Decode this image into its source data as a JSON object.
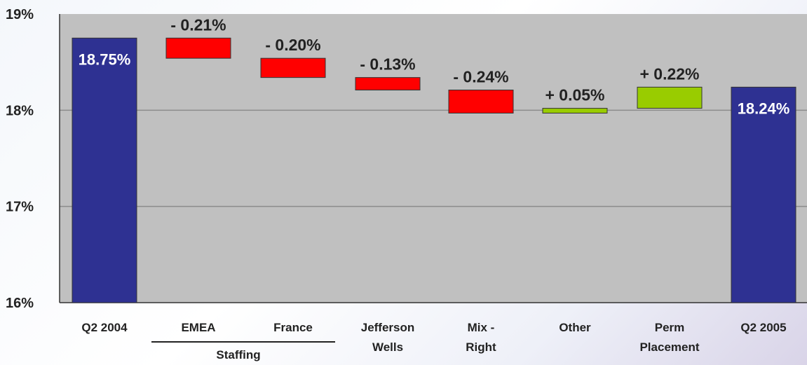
{
  "chart_data": {
    "type": "bar",
    "subtype": "waterfall",
    "ylim": [
      16,
      19
    ],
    "ytick_labels": [
      "19%",
      "18%",
      "17%",
      "16%"
    ],
    "grid": true,
    "categories": [
      [
        "Q2 2004"
      ],
      [
        "EMEA"
      ],
      [
        "France"
      ],
      [
        "Jefferson",
        "Wells"
      ],
      [
        "Mix -",
        "Right"
      ],
      [
        "Other"
      ],
      [
        "Perm",
        "Placement"
      ],
      [
        "Q2 2005"
      ]
    ],
    "group_label": "Staffing",
    "bars": [
      {
        "kind": "total",
        "value": 18.75,
        "label": "18.75%"
      },
      {
        "kind": "decrease",
        "delta": -0.21,
        "label": "- 0.21%"
      },
      {
        "kind": "decrease",
        "delta": -0.2,
        "label": "- 0.20%"
      },
      {
        "kind": "decrease",
        "delta": -0.13,
        "label": "- 0.13%"
      },
      {
        "kind": "decrease",
        "delta": -0.24,
        "label": "- 0.24%"
      },
      {
        "kind": "increase",
        "delta": 0.05,
        "label": "+ 0.05%"
      },
      {
        "kind": "increase",
        "delta": 0.22,
        "label": "+ 0.22%"
      },
      {
        "kind": "total",
        "value": 18.24,
        "label": "18.24%"
      }
    ],
    "colors": {
      "total": "#2e3192",
      "decrease": "#ff0000",
      "increase": "#99cc00",
      "plot_background": "#c0c0c0",
      "gridline": "#8c8c8c"
    }
  }
}
